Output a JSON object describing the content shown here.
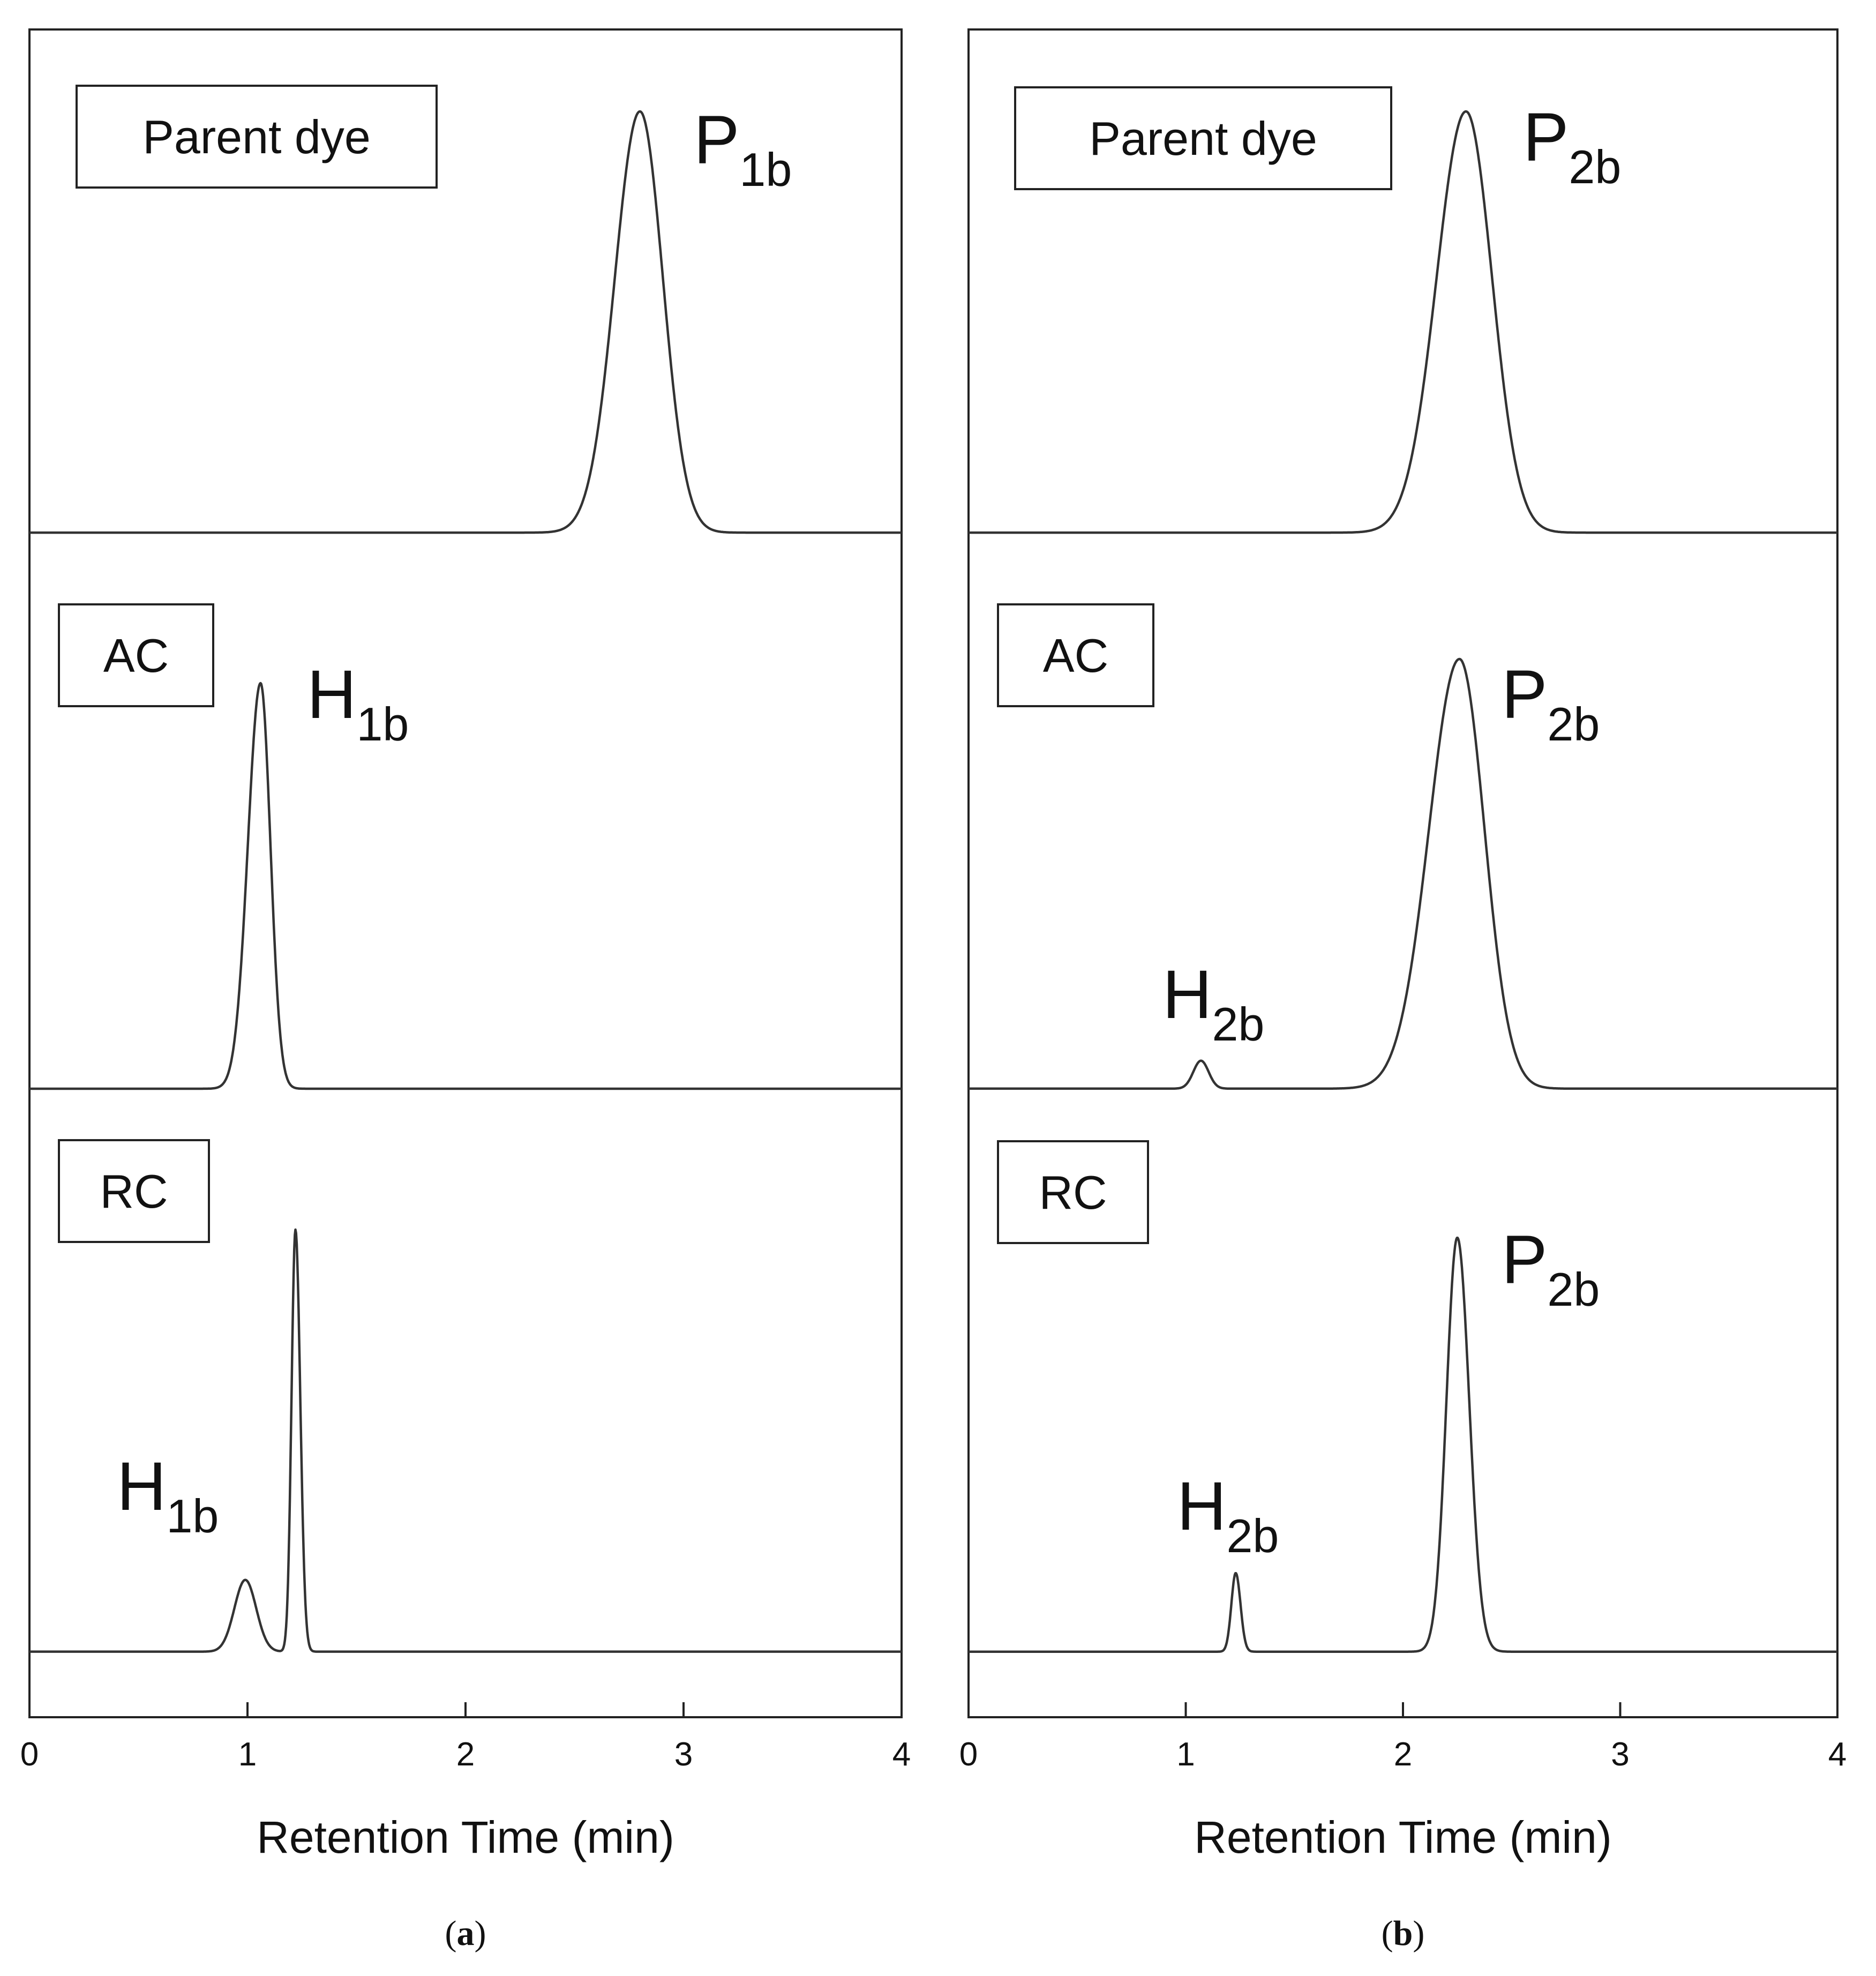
{
  "chart_data": [
    {
      "panel_caption_open": "(",
      "panel_caption_letter": "a",
      "panel_caption_close": ")",
      "type": "line",
      "xlabel": "Retention Time (min)",
      "xlim": [
        0,
        4
      ],
      "x_ticks": [
        0,
        1,
        2,
        3,
        4
      ],
      "tick_labels": [
        "0",
        "1",
        "2",
        "3",
        "4"
      ],
      "grid": false,
      "subplots": [
        {
          "label": "Parent dye",
          "baseline": 0.005,
          "peaks": [
            {
              "name_main": "P",
              "name_sub": "1b",
              "x": 2.8,
              "height": 1.0,
              "sigma_left": 0.115,
              "sigma_right": 0.105
            }
          ]
        },
        {
          "label": "AC",
          "baseline": 0.004,
          "peaks": [
            {
              "name_main": "H",
              "name_sub": "1b",
              "x": 1.06,
              "height": 1.0,
              "sigma_left": 0.058,
              "sigma_right": 0.045
            }
          ]
        },
        {
          "label": "RC",
          "baseline": 0.003,
          "peaks": [
            {
              "name_main": "H",
              "name_sub": "1b",
              "x": 0.99,
              "height": 0.17,
              "sigma_left": 0.05,
              "sigma_right": 0.05
            },
            {
              "name_main": "",
              "name_sub": "",
              "x": 1.22,
              "height": 1.0,
              "sigma_left": 0.018,
              "sigma_right": 0.022
            }
          ]
        }
      ]
    },
    {
      "panel_caption_open": "(",
      "panel_caption_letter": "b",
      "panel_caption_close": ")",
      "type": "line",
      "xlabel": "Retention Time (min)",
      "xlim": [
        0,
        4
      ],
      "x_ticks": [
        0,
        1,
        2,
        3,
        4
      ],
      "tick_labels": [
        "0",
        "1",
        "2",
        "3",
        "4"
      ],
      "grid": false,
      "subplots": [
        {
          "label": "Parent dye",
          "baseline": 0.005,
          "peaks": [
            {
              "name_main": "P",
              "name_sub": "2b",
              "x": 2.29,
              "height": 1.0,
              "sigma_left": 0.135,
              "sigma_right": 0.12
            }
          ]
        },
        {
          "label": "AC",
          "baseline": 0.004,
          "peaks": [
            {
              "name_main": "H",
              "name_sub": "2b",
              "x": 1.07,
              "height": 0.065,
              "sigma_left": 0.035,
              "sigma_right": 0.035
            },
            {
              "name_main": "P",
              "name_sub": "2b",
              "x": 2.26,
              "height": 1.0,
              "sigma_left": 0.14,
              "sigma_right": 0.115
            }
          ]
        },
        {
          "label": "RC",
          "baseline": 0.003,
          "peaks": [
            {
              "name_main": "H",
              "name_sub": "2b",
              "x": 1.23,
              "height": 0.19,
              "sigma_left": 0.02,
              "sigma_right": 0.022
            },
            {
              "name_main": "P",
              "name_sub": "2b",
              "x": 2.25,
              "height": 1.0,
              "sigma_left": 0.05,
              "sigma_right": 0.055
            }
          ]
        }
      ]
    }
  ]
}
